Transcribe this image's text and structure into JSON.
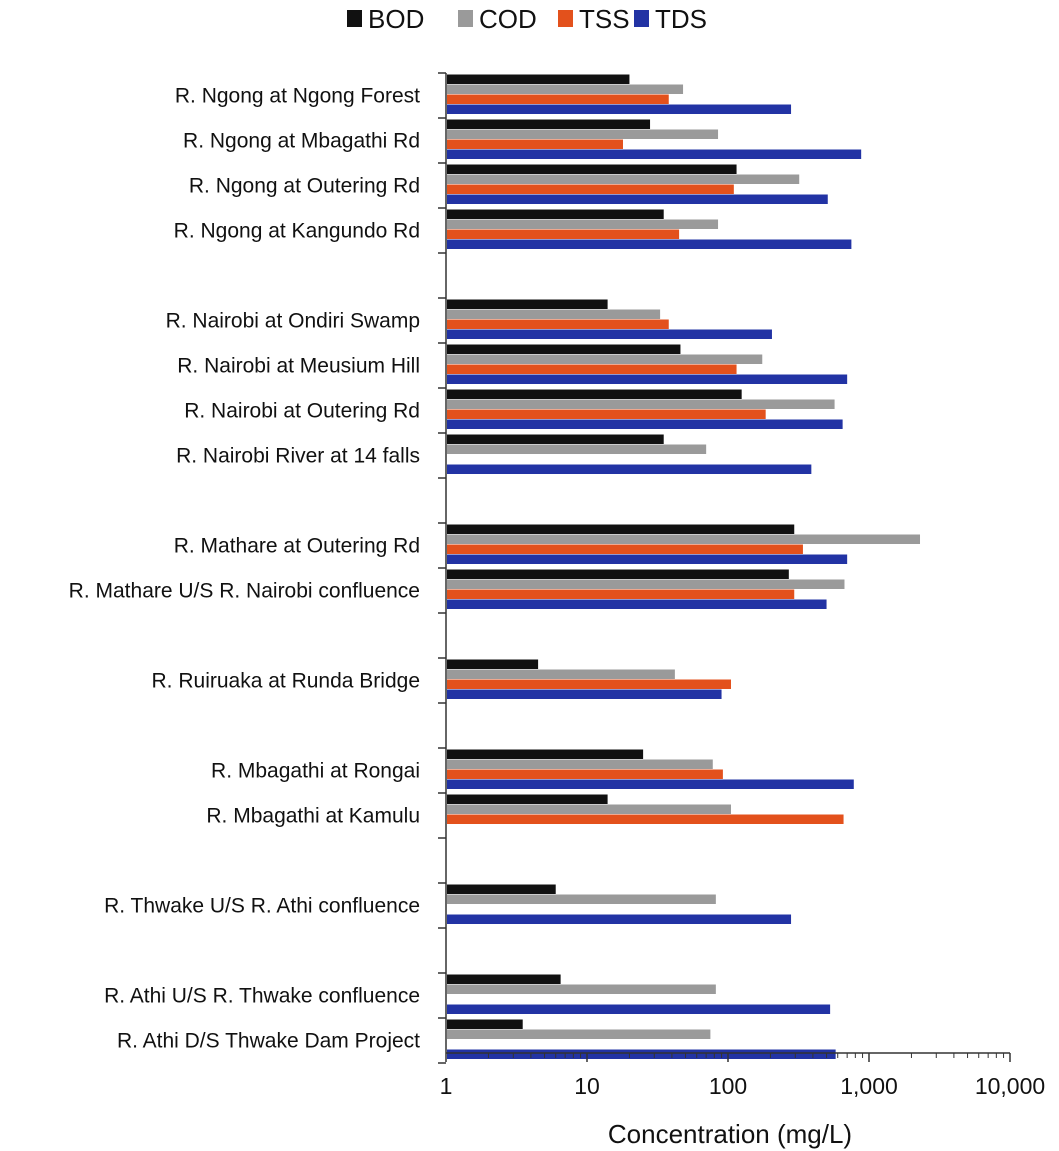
{
  "chart_data": {
    "type": "bar",
    "orientation": "horizontal",
    "xscale": "log",
    "xlim": [
      1,
      10000
    ],
    "xticks": [
      1,
      10,
      100,
      1000,
      10000
    ],
    "xtick_labels": [
      "1",
      "10",
      "100",
      "1,000",
      "10,000"
    ],
    "xlabel": "Concentration (mg/L)",
    "ylabel": "",
    "grid": false,
    "legend_position": "top",
    "legend": [
      {
        "name": "BOD",
        "color": "#111111"
      },
      {
        "name": "COD",
        "color": "#9a9a9a"
      },
      {
        "name": "TSS",
        "color": "#e3511c"
      },
      {
        "name": "TDS",
        "color": "#2233a4"
      }
    ],
    "groups": [
      {
        "categories": [
          {
            "label": "R. Ngong at Ngong Forest",
            "BOD": 20,
            "COD": 48,
            "TSS": 38,
            "TDS": 280
          },
          {
            "label": "R. Ngong at Mbagathi Rd",
            "BOD": 28,
            "COD": 85,
            "TSS": 18,
            "TDS": 880
          },
          {
            "label": "R. Ngong at Outering Rd",
            "BOD": 115,
            "COD": 320,
            "TSS": 110,
            "TDS": 510
          },
          {
            "label": "R. Ngong at Kangundo Rd",
            "BOD": 35,
            "COD": 85,
            "TSS": 45,
            "TDS": 750
          }
        ]
      },
      {
        "categories": [
          {
            "label": "R. Nairobi at Ondiri Swamp",
            "BOD": 14,
            "COD": 33,
            "TSS": 38,
            "TDS": 205
          },
          {
            "label": "R. Nairobi at Meusium Hill",
            "BOD": 46,
            "COD": 175,
            "TSS": 115,
            "TDS": 700
          },
          {
            "label": "R. Nairobi at Outering Rd",
            "BOD": 125,
            "COD": 570,
            "TSS": 185,
            "TDS": 650
          },
          {
            "label": "R. Nairobi River at 14 falls",
            "BOD": 35,
            "COD": 70,
            "TSS": null,
            "TDS": 390
          }
        ]
      },
      {
        "categories": [
          {
            "label": "R. Mathare at Outering Rd",
            "BOD": 295,
            "COD": 2300,
            "TSS": 340,
            "TDS": 700
          },
          {
            "label": "R. Mathare U/S R. Nairobi confluence",
            "BOD": 270,
            "COD": 670,
            "TSS": 295,
            "TDS": 500
          }
        ]
      },
      {
        "categories": [
          {
            "label": "R. Ruiruaka at Runda Bridge",
            "BOD": 4.5,
            "COD": 42,
            "TSS": 105,
            "TDS": 90
          }
        ]
      },
      {
        "categories": [
          {
            "label": "R. Mbagathi at Rongai",
            "BOD": 25,
            "COD": 78,
            "TSS": 92,
            "TDS": 780
          },
          {
            "label": "R. Mbagathi at Kamulu",
            "BOD": 14,
            "COD": 105,
            "TSS": 660,
            "TDS": null
          }
        ]
      },
      {
        "categories": [
          {
            "label": "R. Thwake U/S R. Athi confluence",
            "BOD": 6,
            "COD": 82,
            "TSS": null,
            "TDS": 280
          }
        ]
      },
      {
        "categories": [
          {
            "label": "R. Athi U/S R. Thwake confluence",
            "BOD": 6.5,
            "COD": 82,
            "TSS": null,
            "TDS": 530
          },
          {
            "label": "R. Athi D/S Thwake Dam Project",
            "BOD": 3.5,
            "COD": 75,
            "TSS": null,
            "TDS": 580
          }
        ]
      }
    ]
  }
}
